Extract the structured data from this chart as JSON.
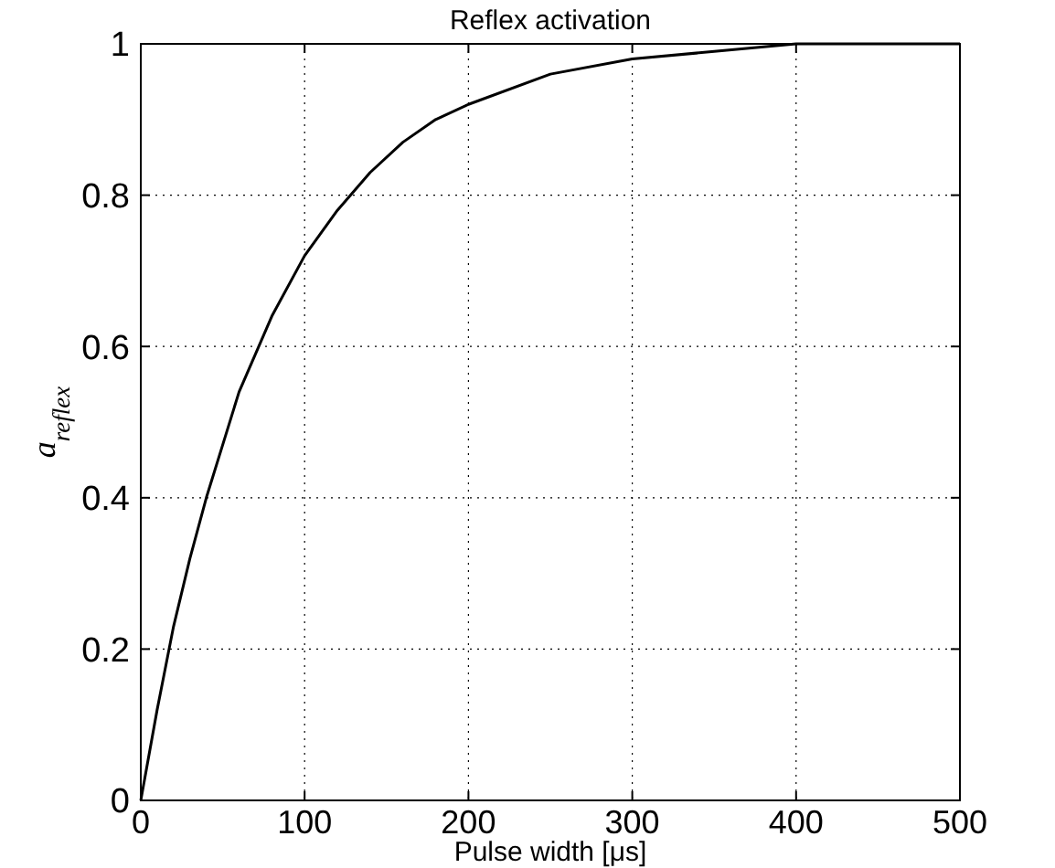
{
  "chart_data": {
    "type": "line",
    "title": "Reflex activation",
    "xlabel": "Pulse width [μs]",
    "ylabel": "a$_{reflex}$",
    "x": [
      0,
      10,
      20,
      30,
      40,
      50,
      60,
      80,
      100,
      120,
      140,
      160,
      180,
      200,
      250,
      300,
      350,
      400,
      450,
      500
    ],
    "series": [
      {
        "color": "#000000",
        "values": [
          0,
          0.12,
          0.23,
          0.32,
          0.4,
          0.47,
          0.54,
          0.64,
          0.72,
          0.78,
          0.83,
          0.87,
          0.9,
          0.92,
          0.96,
          0.98,
          0.99,
          1,
          1,
          1
        ]
      }
    ],
    "xlim": [
      0,
      500
    ],
    "ylim": [
      0,
      1
    ],
    "xticks": [
      0,
      100,
      200,
      300,
      400,
      500
    ],
    "yticks": [
      0,
      0.2,
      0.4,
      0.6,
      0.8,
      1
    ],
    "grid": true,
    "marker": "none",
    "line_style": "solid"
  }
}
